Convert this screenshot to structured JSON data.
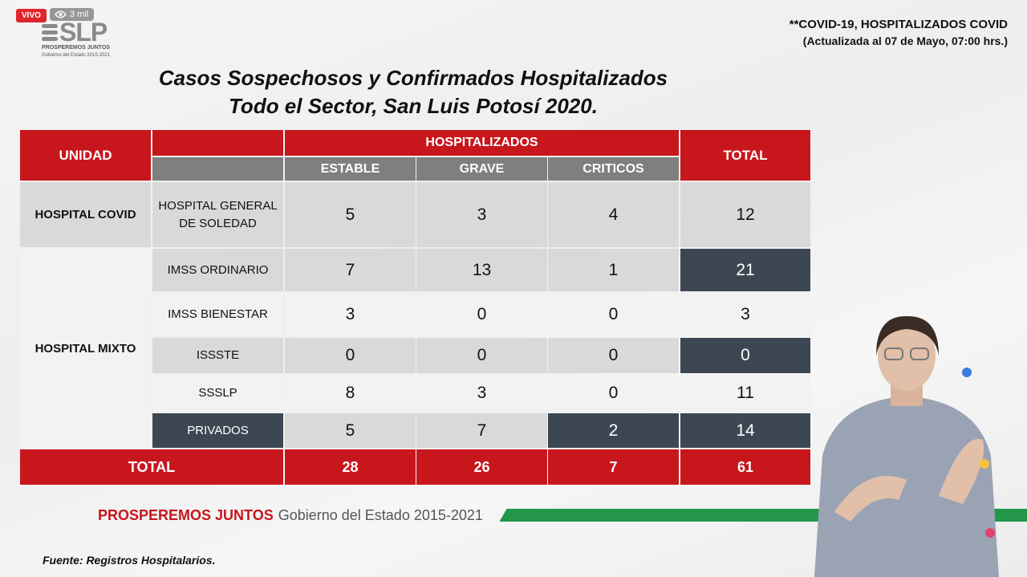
{
  "stream": {
    "live_label": "VIVO",
    "viewers": "3 mil"
  },
  "logo": {
    "name": "SLP",
    "tagline": "PROSPEREMOS JUNTOS",
    "subtitle": "Gobierno del Estado 2015-2021"
  },
  "header": {
    "title": "**COVID-19, HOSPITALIZADOS COVID",
    "updated": "(Actualizada al 07 de Mayo, 07:00 hrs.)"
  },
  "main_title": {
    "line1": "Casos Sospechosos y Confirmados Hospitalizados",
    "line2": "Todo el Sector, San Luis Potosí 2020."
  },
  "table": {
    "headers": {
      "unidad": "UNIDAD",
      "hospitalizados": "HOSPITALIZADOS",
      "estable": "ESTABLE",
      "grave": "GRAVE",
      "criticos": "CRITICOS",
      "total": "TOTAL"
    },
    "groups": {
      "covid": "HOSPITAL COVID",
      "mixto": "HOSPITAL MIXTO"
    },
    "rows": [
      {
        "name": "HOSPITAL GENERAL DE SOLEDAD",
        "estable": "5",
        "grave": "3",
        "criticos": "4",
        "total": "12"
      },
      {
        "name": "IMSS ORDINARIO",
        "estable": "7",
        "grave": "13",
        "criticos": "1",
        "total": "21"
      },
      {
        "name": "IMSS BIENESTAR",
        "estable": "3",
        "grave": "0",
        "criticos": "0",
        "total": "3"
      },
      {
        "name": "ISSSTE",
        "estable": "0",
        "grave": "0",
        "criticos": "0",
        "total": "0"
      },
      {
        "name": "SSSLP",
        "estable": "8",
        "grave": "3",
        "criticos": "0",
        "total": "11"
      },
      {
        "name": "PRIVADOS",
        "estable": "5",
        "grave": "7",
        "criticos": "2",
        "total": "14"
      }
    ],
    "totals": {
      "label": "TOTAL",
      "estable": "28",
      "grave": "26",
      "criticos": "7",
      "total": "61"
    }
  },
  "footer": {
    "brand": "PROSPEREMOS JUNTOS",
    "government": "Gobierno del Estado 2015-2021",
    "source": "Fuente: Registros Hospitalarios."
  },
  "colors": {
    "red": "#c8161d",
    "dark": "#3d4754",
    "green": "#23964a"
  }
}
